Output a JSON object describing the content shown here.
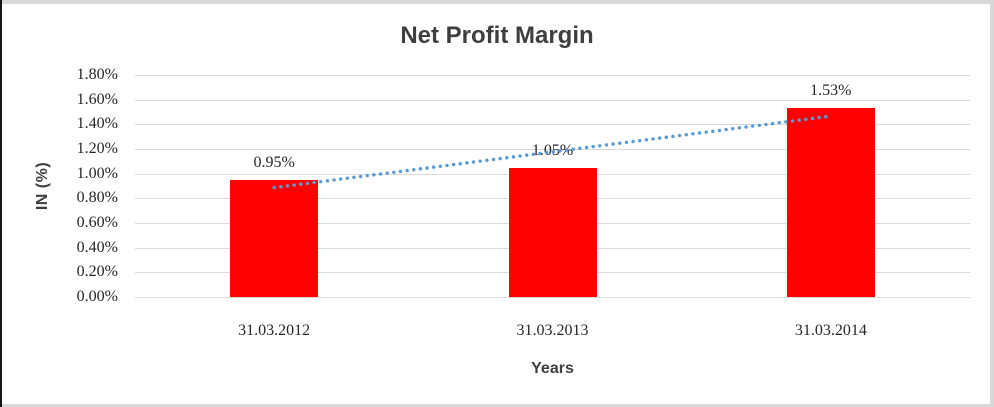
{
  "chart_data": {
    "type": "bar",
    "title": "Net Profit Margin",
    "xlabel": "Years",
    "ylabel": "IN (%)",
    "categories": [
      "31.03.2012",
      "31.03.2013",
      "31.03.2014"
    ],
    "values": [
      0.95,
      1.05,
      1.53
    ],
    "data_labels": [
      "0.95%",
      "1.05%",
      "1.53%"
    ],
    "y_tick_labels": [
      "0.00%",
      "0.20%",
      "0.40%",
      "0.60%",
      "0.80%",
      "1.00%",
      "1.20%",
      "1.40%",
      "1.60%",
      "1.80%"
    ],
    "ylim": [
      0,
      1.8
    ],
    "grid": true,
    "legend": "none",
    "bar_color": "#FF0000",
    "trendline": {
      "style": "dotted",
      "color": "#5B9BD5"
    },
    "gridline_color": "#D9D9D9",
    "text_color": "#262626",
    "title_color": "#3F3F3F"
  }
}
